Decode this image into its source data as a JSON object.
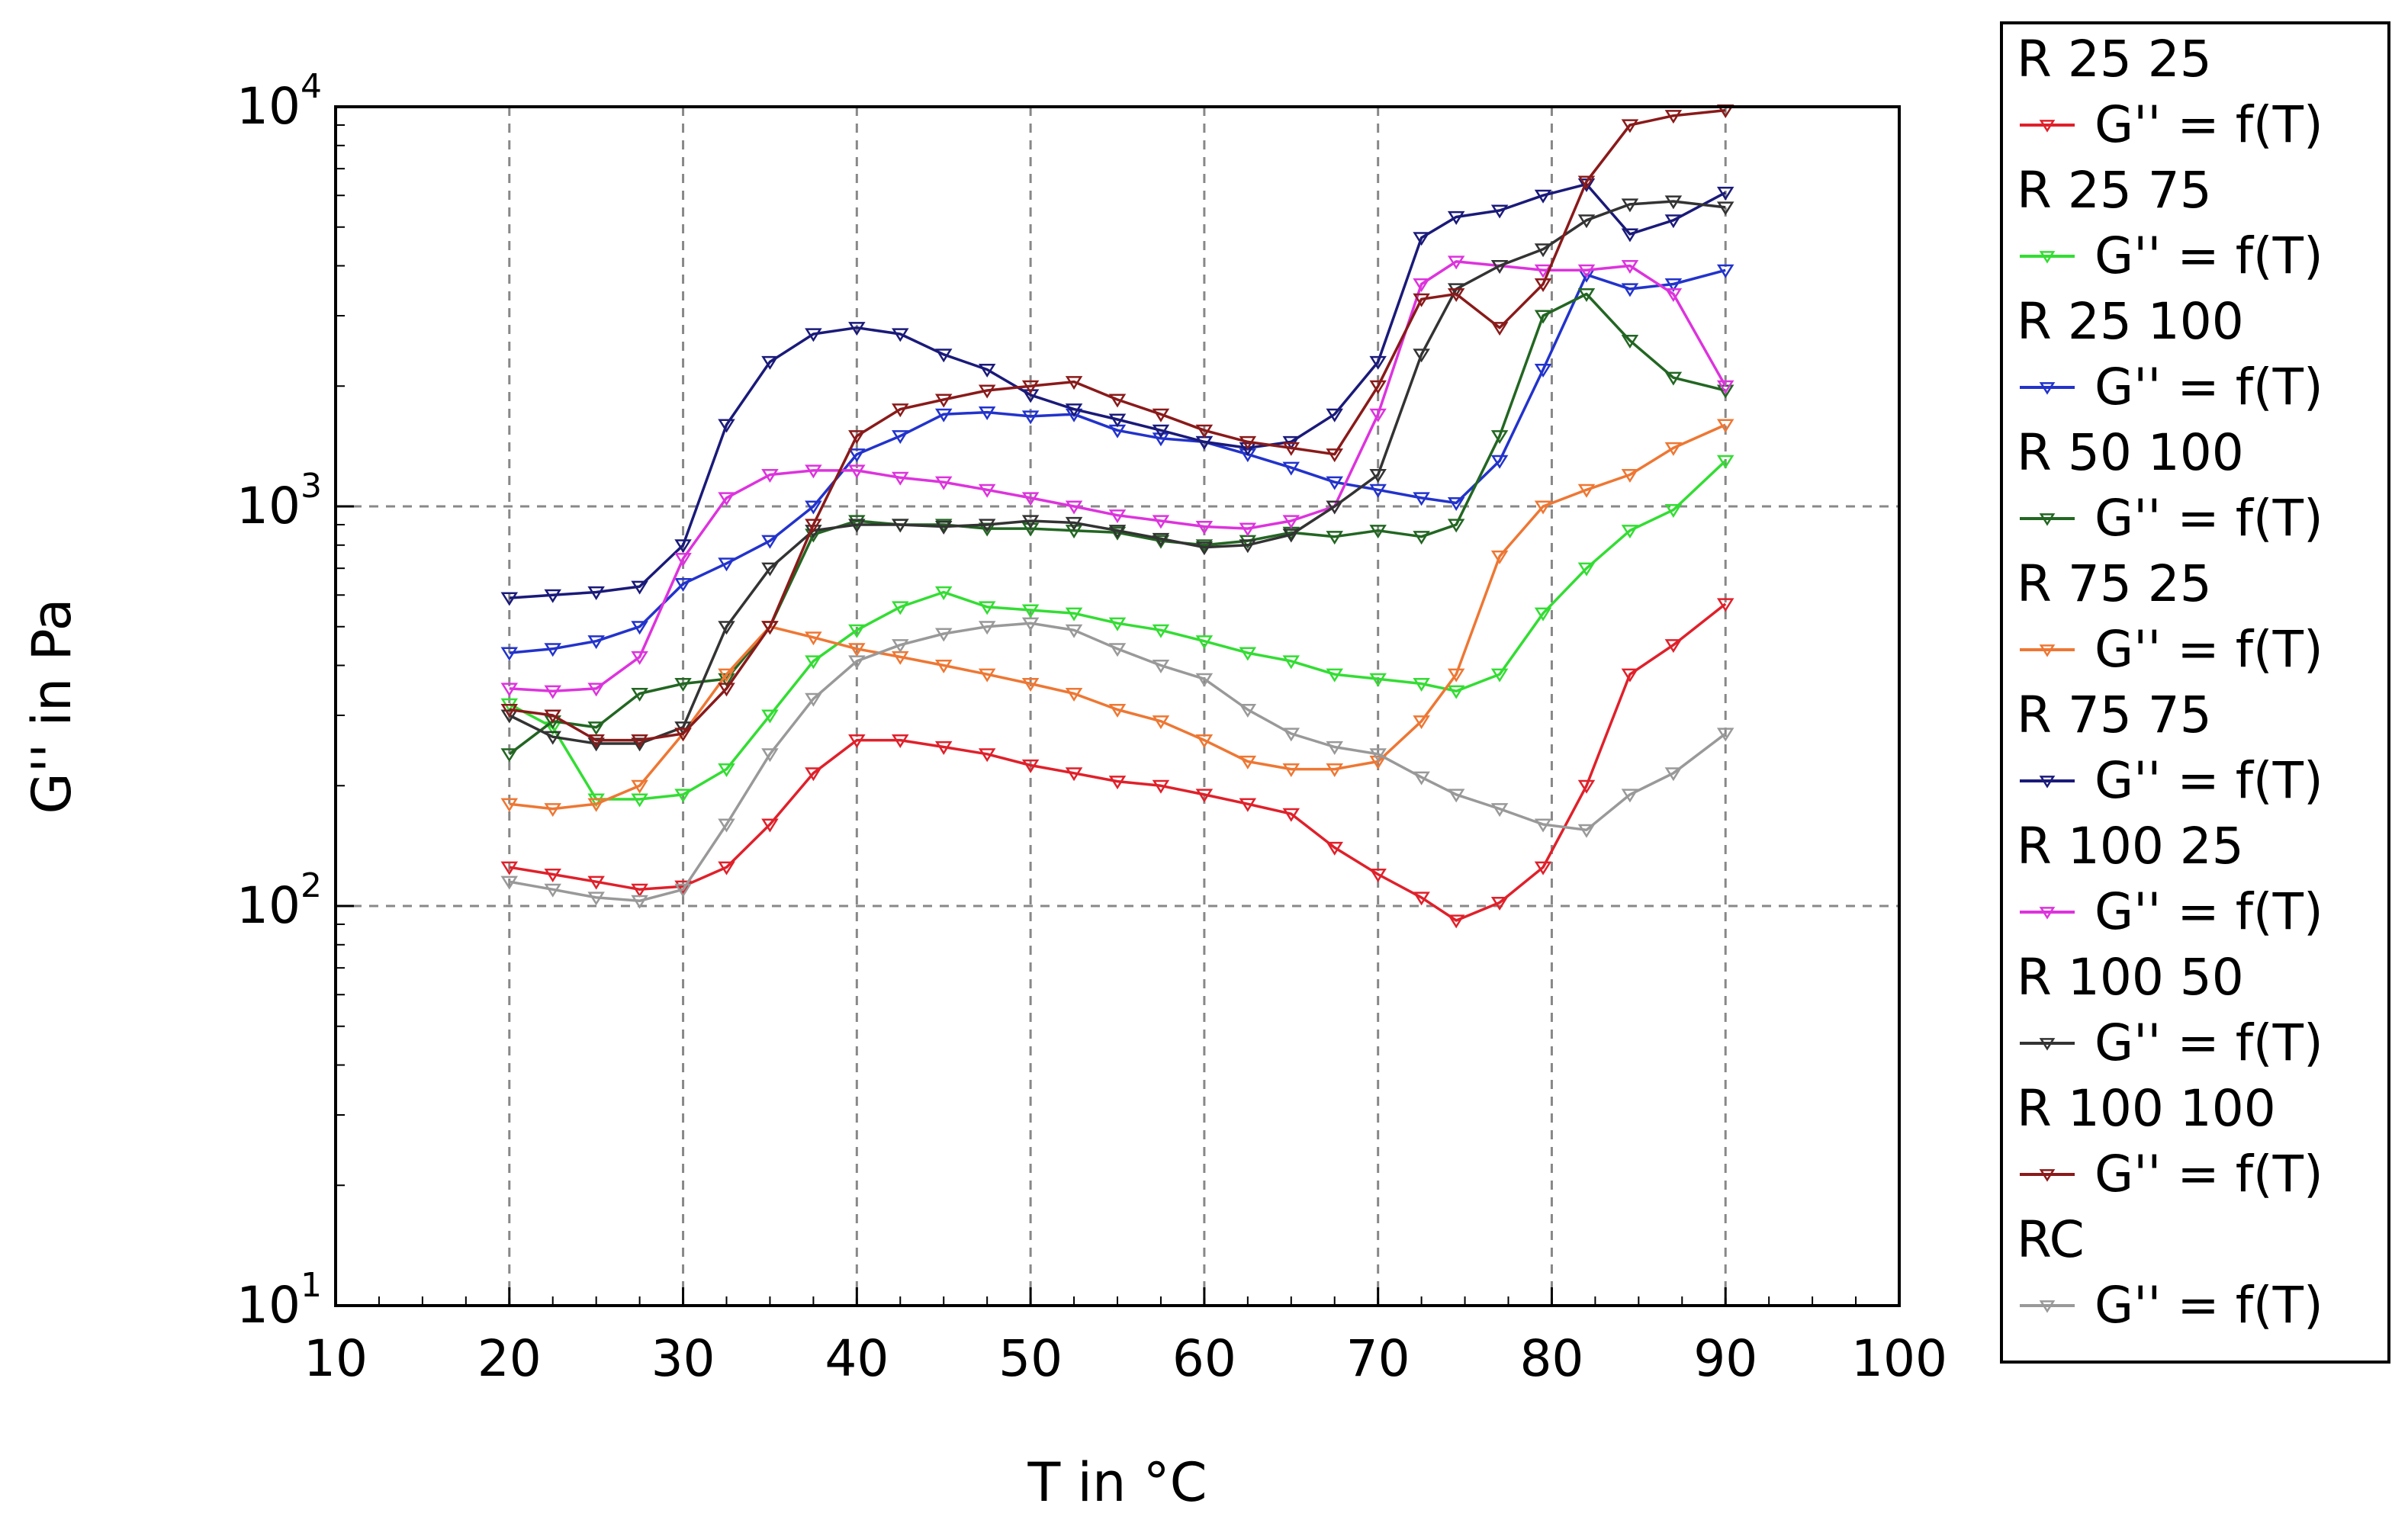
{
  "chart_data": {
    "type": "line",
    "xlabel": "T in °C",
    "ylabel": "G'' in Pa",
    "xlim": [
      10,
      100
    ],
    "ylim": [
      10,
      10000
    ],
    "yscale": "log",
    "grid": true,
    "legend_position": "right",
    "x_ticks": [
      "10",
      "20",
      "30",
      "40",
      "50",
      "60",
      "70",
      "80",
      "90",
      "100"
    ],
    "y_ticks": [
      {
        "base": "10",
        "exp": "1",
        "value": 10
      },
      {
        "base": "10",
        "exp": "2",
        "value": 100
      },
      {
        "base": "10",
        "exp": "3",
        "value": 1000
      },
      {
        "base": "10",
        "exp": "4",
        "value": 10000
      }
    ],
    "series": [
      {
        "name": "R 25 25",
        "label": "G'' = f(T)",
        "color": "#e0202a",
        "points": [
          [
            20,
            125
          ],
          [
            22.5,
            120
          ],
          [
            25,
            115
          ],
          [
            27.5,
            110
          ],
          [
            30,
            112
          ],
          [
            32.5,
            125
          ],
          [
            35,
            160
          ],
          [
            37.5,
            215
          ],
          [
            40,
            260
          ],
          [
            42.5,
            260
          ],
          [
            45,
            250
          ],
          [
            47.5,
            240
          ],
          [
            50,
            225
          ],
          [
            52.5,
            215
          ],
          [
            55,
            205
          ],
          [
            57.5,
            200
          ],
          [
            60,
            190
          ],
          [
            62.5,
            180
          ],
          [
            65,
            170
          ],
          [
            67.5,
            140
          ],
          [
            70,
            120
          ],
          [
            72.5,
            105
          ],
          [
            74.5,
            92
          ],
          [
            77,
            102
          ],
          [
            79.5,
            125
          ],
          [
            82,
            200
          ],
          [
            84.5,
            380
          ],
          [
            87,
            450
          ],
          [
            90,
            570
          ]
        ]
      },
      {
        "name": "R 25 75",
        "label": "G'' = f(T)",
        "color": "#33dd33",
        "points": [
          [
            20,
            320
          ],
          [
            22.5,
            280
          ],
          [
            25,
            185
          ],
          [
            27.5,
            185
          ],
          [
            30,
            190
          ],
          [
            32.5,
            220
          ],
          [
            35,
            300
          ],
          [
            37.5,
            410
          ],
          [
            40,
            490
          ],
          [
            42.5,
            560
          ],
          [
            45,
            610
          ],
          [
            47.5,
            560
          ],
          [
            50,
            550
          ],
          [
            52.5,
            540
          ],
          [
            55,
            510
          ],
          [
            57.5,
            490
          ],
          [
            60,
            460
          ],
          [
            62.5,
            430
          ],
          [
            65,
            410
          ],
          [
            67.5,
            380
          ],
          [
            70,
            370
          ],
          [
            72.5,
            360
          ],
          [
            74.5,
            345
          ],
          [
            77,
            380
          ],
          [
            79.5,
            540
          ],
          [
            82,
            700
          ],
          [
            84.5,
            870
          ],
          [
            87,
            980
          ],
          [
            90,
            1300
          ]
        ]
      },
      {
        "name": "R 25 100",
        "label": "G'' = f(T)",
        "color": "#2233cc",
        "points": [
          [
            20,
            430
          ],
          [
            22.5,
            440
          ],
          [
            25,
            460
          ],
          [
            27.5,
            500
          ],
          [
            30,
            640
          ],
          [
            32.5,
            720
          ],
          [
            35,
            820
          ],
          [
            37.5,
            1000
          ],
          [
            40,
            1350
          ],
          [
            42.5,
            1500
          ],
          [
            45,
            1700
          ],
          [
            47.5,
            1720
          ],
          [
            50,
            1680
          ],
          [
            52.5,
            1700
          ],
          [
            55,
            1550
          ],
          [
            57.5,
            1480
          ],
          [
            60,
            1450
          ],
          [
            62.5,
            1350
          ],
          [
            65,
            1250
          ],
          [
            67.5,
            1150
          ],
          [
            70,
            1100
          ],
          [
            72.5,
            1050
          ],
          [
            74.5,
            1020
          ],
          [
            77,
            1300
          ],
          [
            79.5,
            2200
          ],
          [
            82,
            3800
          ],
          [
            84.5,
            3500
          ],
          [
            87,
            3600
          ],
          [
            90,
            3900
          ]
        ]
      },
      {
        "name": "R 50 100",
        "label": "G'' = f(T)",
        "color": "#226622",
        "points": [
          [
            20,
            240
          ],
          [
            22.5,
            290
          ],
          [
            25,
            280
          ],
          [
            27.5,
            340
          ],
          [
            30,
            360
          ],
          [
            32.5,
            370
          ],
          [
            35,
            500
          ],
          [
            37.5,
            850
          ],
          [
            40,
            920
          ],
          [
            42.5,
            900
          ],
          [
            45,
            900
          ],
          [
            47.5,
            880
          ],
          [
            50,
            880
          ],
          [
            52.5,
            870
          ],
          [
            55,
            860
          ],
          [
            57.5,
            820
          ],
          [
            60,
            800
          ],
          [
            62.5,
            820
          ],
          [
            65,
            860
          ],
          [
            67.5,
            840
          ],
          [
            70,
            870
          ],
          [
            72.5,
            840
          ],
          [
            74.5,
            900
          ],
          [
            77,
            1500
          ],
          [
            79.5,
            3000
          ],
          [
            82,
            3400
          ],
          [
            84.5,
            2600
          ],
          [
            87,
            2100
          ],
          [
            90,
            1950
          ]
        ]
      },
      {
        "name": "R 75 25",
        "label": "G'' = f(T)",
        "color": "#ee7733",
        "points": [
          [
            20,
            180
          ],
          [
            22.5,
            175
          ],
          [
            25,
            180
          ],
          [
            27.5,
            200
          ],
          [
            30,
            270
          ],
          [
            32.5,
            380
          ],
          [
            35,
            500
          ],
          [
            37.5,
            470
          ],
          [
            40,
            440
          ],
          [
            42.5,
            420
          ],
          [
            45,
            400
          ],
          [
            47.5,
            380
          ],
          [
            50,
            360
          ],
          [
            52.5,
            340
          ],
          [
            55,
            310
          ],
          [
            57.5,
            290
          ],
          [
            60,
            260
          ],
          [
            62.5,
            230
          ],
          [
            65,
            220
          ],
          [
            67.5,
            220
          ],
          [
            70,
            230
          ],
          [
            72.5,
            290
          ],
          [
            74.5,
            380
          ],
          [
            77,
            750
          ],
          [
            79.5,
            1000
          ],
          [
            82,
            1100
          ],
          [
            84.5,
            1200
          ],
          [
            87,
            1400
          ],
          [
            90,
            1600
          ]
        ]
      },
      {
        "name": "R 75 75",
        "label": "G'' = f(T)",
        "color": "#1a1a7a",
        "points": [
          [
            20,
            590
          ],
          [
            22.5,
            600
          ],
          [
            25,
            610
          ],
          [
            27.5,
            630
          ],
          [
            30,
            800
          ],
          [
            32.5,
            1600
          ],
          [
            35,
            2300
          ],
          [
            37.5,
            2700
          ],
          [
            40,
            2800
          ],
          [
            42.5,
            2700
          ],
          [
            45,
            2400
          ],
          [
            47.5,
            2200
          ],
          [
            50,
            1900
          ],
          [
            52.5,
            1750
          ],
          [
            55,
            1650
          ],
          [
            57.5,
            1550
          ],
          [
            60,
            1450
          ],
          [
            62.5,
            1400
          ],
          [
            65,
            1450
          ],
          [
            67.5,
            1700
          ],
          [
            70,
            2300
          ],
          [
            72.5,
            4700
          ],
          [
            74.5,
            5300
          ],
          [
            77,
            5500
          ],
          [
            79.5,
            6000
          ],
          [
            82,
            6400
          ],
          [
            84.5,
            4800
          ],
          [
            87,
            5200
          ],
          [
            90,
            6100
          ]
        ]
      },
      {
        "name": "R 100 25",
        "label": "G'' = f(T)",
        "color": "#dd33dd",
        "points": [
          [
            20,
            350
          ],
          [
            22.5,
            345
          ],
          [
            25,
            350
          ],
          [
            27.5,
            420
          ],
          [
            30,
            740
          ],
          [
            32.5,
            1050
          ],
          [
            35,
            1200
          ],
          [
            37.5,
            1230
          ],
          [
            40,
            1230
          ],
          [
            42.5,
            1180
          ],
          [
            45,
            1150
          ],
          [
            47.5,
            1100
          ],
          [
            50,
            1050
          ],
          [
            52.5,
            1000
          ],
          [
            55,
            950
          ],
          [
            57.5,
            920
          ],
          [
            60,
            890
          ],
          [
            62.5,
            880
          ],
          [
            65,
            920
          ],
          [
            67.5,
            1000
          ],
          [
            70,
            1700
          ],
          [
            72.5,
            3600
          ],
          [
            74.5,
            4100
          ],
          [
            77,
            4000
          ],
          [
            79.5,
            3900
          ],
          [
            82,
            3900
          ],
          [
            84.5,
            4000
          ],
          [
            87,
            3400
          ],
          [
            90,
            2000
          ]
        ]
      },
      {
        "name": "R 100 50",
        "label": "G'' = f(T)",
        "color": "#333333",
        "points": [
          [
            20,
            300
          ],
          [
            22.5,
            265
          ],
          [
            25,
            255
          ],
          [
            27.5,
            255
          ],
          [
            30,
            280
          ],
          [
            32.5,
            500
          ],
          [
            35,
            700
          ],
          [
            37.5,
            870
          ],
          [
            40,
            900
          ],
          [
            42.5,
            900
          ],
          [
            45,
            890
          ],
          [
            47.5,
            900
          ],
          [
            50,
            920
          ],
          [
            52.5,
            910
          ],
          [
            55,
            870
          ],
          [
            57.5,
            830
          ],
          [
            60,
            790
          ],
          [
            62.5,
            800
          ],
          [
            65,
            850
          ],
          [
            67.5,
            1000
          ],
          [
            70,
            1200
          ],
          [
            72.5,
            2400
          ],
          [
            74.5,
            3500
          ],
          [
            77,
            4000
          ],
          [
            79.5,
            4400
          ],
          [
            82,
            5200
          ],
          [
            84.5,
            5700
          ],
          [
            87,
            5800
          ],
          [
            90,
            5600
          ]
        ]
      },
      {
        "name": "R 100 100",
        "label": "G'' = f(T)",
        "color": "#8a1a1a",
        "points": [
          [
            20,
            310
          ],
          [
            22.5,
            300
          ],
          [
            25,
            260
          ],
          [
            27.5,
            260
          ],
          [
            30,
            270
          ],
          [
            32.5,
            350
          ],
          [
            35,
            500
          ],
          [
            37.5,
            900
          ],
          [
            40,
            1500
          ],
          [
            42.5,
            1750
          ],
          [
            45,
            1850
          ],
          [
            47.5,
            1950
          ],
          [
            50,
            2000
          ],
          [
            52.5,
            2050
          ],
          [
            55,
            1850
          ],
          [
            57.5,
            1700
          ],
          [
            60,
            1550
          ],
          [
            62.5,
            1450
          ],
          [
            65,
            1400
          ],
          [
            67.5,
            1350
          ],
          [
            70,
            2000
          ],
          [
            72.5,
            3300
          ],
          [
            74.5,
            3400
          ],
          [
            77,
            2800
          ],
          [
            79.5,
            3600
          ],
          [
            82,
            6500
          ],
          [
            84.5,
            9000
          ],
          [
            87,
            9500
          ],
          [
            90,
            9800
          ]
        ]
      },
      {
        "name": "RC",
        "label": "G'' = f(T)",
        "color": "#999999",
        "points": [
          [
            20,
            115
          ],
          [
            22.5,
            110
          ],
          [
            25,
            105
          ],
          [
            27.5,
            103
          ],
          [
            30,
            110
          ],
          [
            32.5,
            160
          ],
          [
            35,
            240
          ],
          [
            37.5,
            330
          ],
          [
            40,
            410
          ],
          [
            42.5,
            450
          ],
          [
            45,
            480
          ],
          [
            47.5,
            500
          ],
          [
            50,
            510
          ],
          [
            52.5,
            490
          ],
          [
            55,
            440
          ],
          [
            57.5,
            400
          ],
          [
            60,
            370
          ],
          [
            62.5,
            310
          ],
          [
            65,
            270
          ],
          [
            67.5,
            250
          ],
          [
            70,
            240
          ],
          [
            72.5,
            210
          ],
          [
            74.5,
            190
          ],
          [
            77,
            175
          ],
          [
            79.5,
            160
          ],
          [
            82,
            155
          ],
          [
            84.5,
            190
          ],
          [
            87,
            215
          ],
          [
            90,
            270
          ]
        ]
      }
    ]
  }
}
